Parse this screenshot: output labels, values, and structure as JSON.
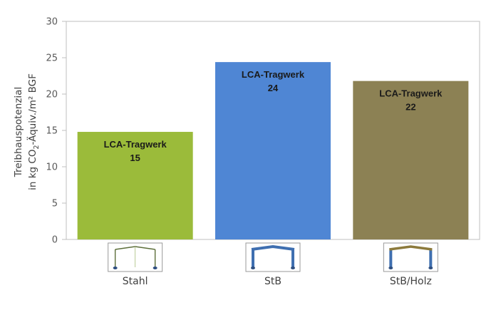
{
  "chart_data": {
    "type": "bar",
    "ylabel_line1": "Treibhauspotenzial",
    "ylabel_line2_prefix": "in kg CO",
    "ylabel_line2_sub": "2",
    "ylabel_line2_suffix": "-Äquiv./m² BGF",
    "ylim": [
      0,
      30
    ],
    "yticks": [
      "0",
      "5",
      "10",
      "15",
      "20",
      "25",
      "30"
    ],
    "grid": false,
    "categories": [
      "Stahl",
      "StB",
      "StB/Holz"
    ],
    "values": [
      14.8,
      24.4,
      21.8
    ],
    "data_labels": [
      {
        "name": "LCA-Tragwerk",
        "value": "15"
      },
      {
        "name": "LCA-Tragwerk",
        "value": "24"
      },
      {
        "name": "LCA-Tragwerk",
        "value": "22"
      }
    ],
    "colors": [
      "#9bbb3a",
      "#4f86d4",
      "#8c8154"
    ],
    "frame_icons": [
      "steel-frame-icon",
      "concrete-frame-icon",
      "concrete-timber-frame-icon"
    ]
  }
}
